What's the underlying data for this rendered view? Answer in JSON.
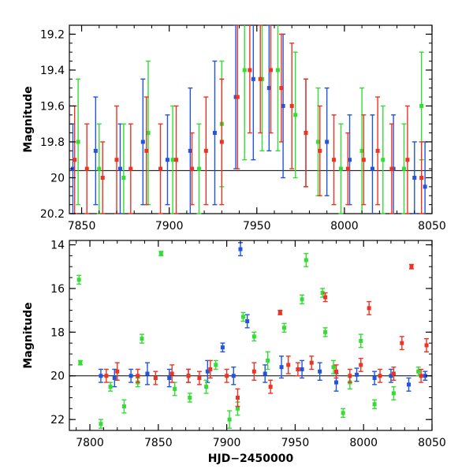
{
  "chart_data": [
    {
      "type": "scatter",
      "title": "",
      "xlabel": "",
      "ylabel": "Magnitude",
      "xlim": [
        7843,
        8050
      ],
      "ylim": [
        20.2,
        19.15
      ],
      "y_inverted": true,
      "xticks": [
        7850,
        7900,
        7950,
        8000,
        8050
      ],
      "yticks": [
        19.2,
        19.4,
        19.6,
        19.8,
        20,
        20.2
      ],
      "ytick_labels": [
        "19.2",
        "19.4",
        "19.6",
        "19.8",
        "20",
        "20.2"
      ],
      "reference_line": 19.96,
      "series": [
        {
          "color": "#2255dd",
          "x": [
            7845,
            7858,
            7872,
            7885,
            7899,
            7912,
            7926,
            7938,
            7948,
            7957,
            7965,
            7978,
            7990,
            8003,
            8016,
            8028,
            8040,
            8046
          ],
          "y": [
            19.95,
            19.85,
            19.95,
            19.8,
            19.9,
            19.85,
            19.75,
            19.55,
            19.45,
            19.5,
            19.6,
            19.75,
            19.8,
            19.9,
            19.95,
            19.95,
            20.0,
            20.05
          ],
          "err": [
            0.25,
            0.3,
            0.25,
            0.35,
            0.25,
            0.35,
            0.4,
            0.4,
            0.45,
            0.35,
            0.4,
            0.3,
            0.3,
            0.25,
            0.3,
            0.3,
            0.2,
            0.25
          ]
        },
        {
          "color": "#33dd33",
          "x": [
            7848,
            7860,
            7874,
            7888,
            7902,
            7917,
            7930,
            7943,
            7953,
            7962,
            7972,
            7985,
            7998,
            8010,
            8022,
            8034,
            8044
          ],
          "y": [
            19.8,
            19.95,
            20.0,
            19.75,
            19.9,
            19.95,
            19.7,
            19.4,
            19.45,
            19.4,
            19.65,
            19.8,
            19.95,
            19.85,
            19.9,
            19.95,
            19.6
          ],
          "err": [
            0.35,
            0.25,
            0.3,
            0.4,
            0.3,
            0.25,
            0.35,
            0.5,
            0.4,
            0.45,
            0.35,
            0.3,
            0.25,
            0.35,
            0.3,
            0.25,
            0.3
          ]
        },
        {
          "color": "#ee3322",
          "x": [
            7846,
            7853,
            7862,
            7870,
            7878,
            7887,
            7895,
            7904,
            7913,
            7921,
            7930,
            7939,
            7946,
            7952,
            7958,
            7964,
            7970,
            7978,
            7986,
            7994,
            8002,
            8011,
            8019,
            8027,
            8036,
            8044
          ],
          "y": [
            19.9,
            19.95,
            20.0,
            19.9,
            19.95,
            19.85,
            19.95,
            19.9,
            19.95,
            19.85,
            19.8,
            19.55,
            19.4,
            19.45,
            19.4,
            19.5,
            19.6,
            19.75,
            19.85,
            19.9,
            19.95,
            19.9,
            19.85,
            19.95,
            19.9,
            20.0
          ],
          "err": [
            0.3,
            0.25,
            0.2,
            0.3,
            0.25,
            0.3,
            0.25,
            0.3,
            0.2,
            0.3,
            0.35,
            0.4,
            0.35,
            0.3,
            0.35,
            0.3,
            0.35,
            0.3,
            0.25,
            0.25,
            0.2,
            0.25,
            0.3,
            0.25,
            0.3,
            0.2
          ]
        }
      ]
    },
    {
      "type": "scatter",
      "title": "",
      "xlabel": "HJD−2450000",
      "ylabel": "Magnitude",
      "xlim": [
        7785,
        8050
      ],
      "ylim": [
        22.5,
        13.8
      ],
      "y_inverted": true,
      "xticks": [
        7800,
        7850,
        7900,
        7950,
        8000,
        8050
      ],
      "yticks": [
        14,
        16,
        18,
        20,
        22
      ],
      "ytick_labels": [
        "14",
        "16",
        "18",
        "20",
        "22"
      ],
      "reference_line": 20.0,
      "series": [
        {
          "color": "#2255dd",
          "x": [
            7808,
            7818,
            7830,
            7842,
            7858,
            7872,
            7886,
            7897,
            7905,
            7910,
            7915,
            7928,
            7940,
            7955,
            7968,
            7980,
            7995,
            8008,
            8020,
            8033,
            8045
          ],
          "y": [
            20.0,
            20.1,
            20.0,
            19.9,
            20.1,
            20.0,
            19.8,
            18.7,
            20.0,
            14.2,
            17.5,
            19.9,
            19.6,
            19.7,
            19.8,
            20.3,
            19.95,
            20.1,
            20.0,
            20.4,
            20.0
          ],
          "err": [
            0.3,
            0.4,
            0.3,
            0.5,
            0.4,
            0.3,
            0.5,
            0.2,
            0.4,
            0.3,
            0.3,
            0.4,
            0.5,
            0.4,
            0.4,
            0.4,
            0.3,
            0.3,
            0.3,
            0.3,
            0.2
          ]
        },
        {
          "color": "#33dd33",
          "x": [
            7792,
            7793,
            7808,
            7815,
            7825,
            7835,
            7838,
            7852,
            7862,
            7873,
            7885,
            7892,
            7902,
            7908,
            7912,
            7920,
            7930,
            7942,
            7955,
            7958,
            7970,
            7972,
            7978,
            7985,
            7990,
            7998,
            8008,
            8022,
            8040
          ],
          "y": [
            15.6,
            19.4,
            22.2,
            20.5,
            21.4,
            20.3,
            18.3,
            14.4,
            20.6,
            21.0,
            20.5,
            19.5,
            22.0,
            21.5,
            17.3,
            18.2,
            19.3,
            17.8,
            16.5,
            14.7,
            16.2,
            18.0,
            19.6,
            21.7,
            20.3,
            18.4,
            21.3,
            20.8,
            19.8
          ],
          "err": [
            0.2,
            0.1,
            0.2,
            0.2,
            0.3,
            0.2,
            0.2,
            0.1,
            0.3,
            0.2,
            0.3,
            0.2,
            0.4,
            0.3,
            0.2,
            0.2,
            0.4,
            0.2,
            0.2,
            0.3,
            0.2,
            0.2,
            0.3,
            0.2,
            0.3,
            0.3,
            0.2,
            0.3,
            0.2
          ]
        },
        {
          "color": "#ee3322",
          "x": [
            7812,
            7820,
            7835,
            7848,
            7860,
            7872,
            7880,
            7888,
            7900,
            7908,
            7920,
            7932,
            7939,
            7945,
            7952,
            7962,
            7972,
            7980,
            7990,
            7998,
            8004,
            8012,
            8022,
            8028,
            8035,
            8042,
            8046
          ],
          "y": [
            20.0,
            19.8,
            20.0,
            20.1,
            19.9,
            20.0,
            20.1,
            19.7,
            20.0,
            21.0,
            19.8,
            20.5,
            17.1,
            19.5,
            19.7,
            19.4,
            16.4,
            19.8,
            20.0,
            19.5,
            16.9,
            20.0,
            19.9,
            18.5,
            15.0,
            20.0,
            18.6
          ],
          "err": [
            0.3,
            0.4,
            0.3,
            0.3,
            0.4,
            0.3,
            0.3,
            0.4,
            0.3,
            0.4,
            0.4,
            0.3,
            0.1,
            0.4,
            0.3,
            0.3,
            0.2,
            0.3,
            0.3,
            0.3,
            0.3,
            0.3,
            0.3,
            0.3,
            0.1,
            0.3,
            0.3
          ]
        }
      ]
    }
  ]
}
